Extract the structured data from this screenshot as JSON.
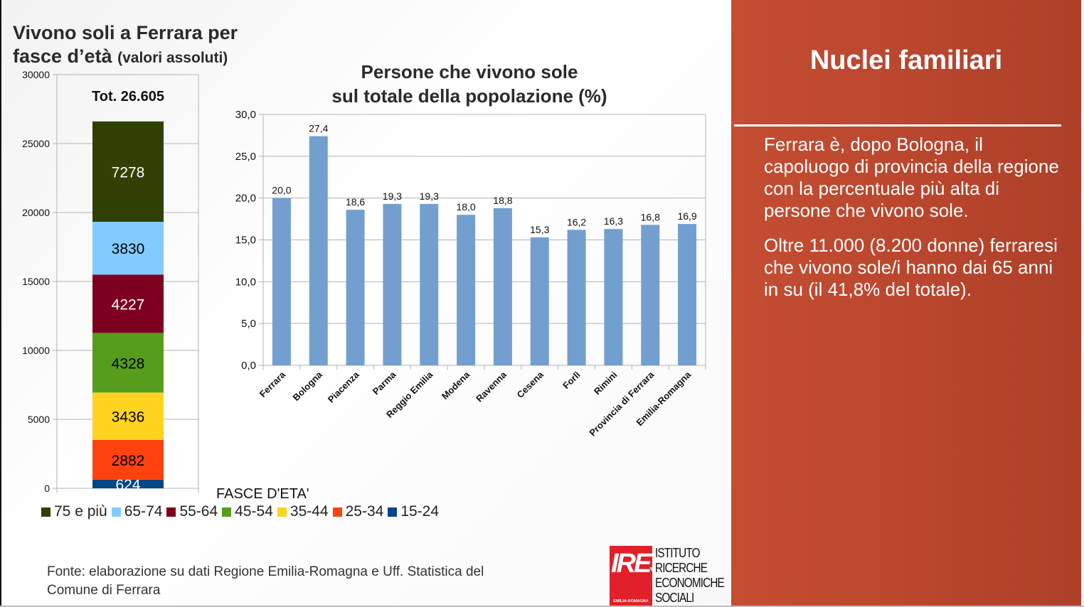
{
  "left_chart": {
    "title_line1": "Vivono soli a Ferrara per",
    "title_line2_main": "fasce d’età",
    "title_line2_small": "(valori assoluti)",
    "total_label": "Tot. 26.605",
    "legend_title": "FASCE D'ETA'"
  },
  "right_chart": {
    "title_line1": "Persone che vivono sole",
    "title_line2": "sul totale della popolazione (%)"
  },
  "source": {
    "line1": "Fonte: elaborazione su dati Regione Emilia-Romagna e Uff. Statistica del",
    "line2": "Comune di Ferrara"
  },
  "logo": {
    "mark": "IRES",
    "sub": "EMILIA-ROMAGNA",
    "lines": [
      "ISTITUTO",
      "RICERCHE",
      "ECONOMICHE",
      "SOCIALI"
    ]
  },
  "panel": {
    "title": "Nuclei familiari",
    "paragraphs": [
      "Ferrara è, dopo Bologna, il capoluogo di provincia della regione con la percentuale più alta di persone che vivono sole.",
      "Oltre 11.000 (8.200 donne) ferraresi che vivono sole/i hanno dai 65 anni in su (il 41,8% del totale)."
    ],
    "color": "#b8452d"
  },
  "chart_data": [
    {
      "type": "bar",
      "stacked": true,
      "title": "Vivono soli a Ferrara per fasce d’età (valori assoluti)",
      "annotation": "Tot. 26.605",
      "xlabel": "FASCE D'ETA'",
      "ylim": [
        0,
        30000
      ],
      "yticks": [
        "0",
        "5000",
        "10000",
        "15000",
        "20000",
        "25000",
        "30000"
      ],
      "legend_position": "bottom",
      "series": [
        {
          "name": "15-24",
          "value": 624,
          "color": "#004586",
          "label_color": "#ffffff"
        },
        {
          "name": "25-34",
          "value": 2882,
          "color": "#ff420e",
          "label_color": "#000000"
        },
        {
          "name": "35-44",
          "value": 3436,
          "color": "#ffd320",
          "label_color": "#000000"
        },
        {
          "name": "45-54",
          "value": 4328,
          "color": "#579d1c",
          "label_color": "#000000"
        },
        {
          "name": "55-64",
          "value": 4227,
          "color": "#7e0021",
          "label_color": "#ffffff"
        },
        {
          "name": "65-74",
          "value": 3830,
          "color": "#83caff",
          "label_color": "#000000"
        },
        {
          "name": "75 e più",
          "value": 7278,
          "color": "#314004",
          "label_color": "#ffffff"
        }
      ],
      "legend_order": [
        "75 e più",
        "65-74",
        "55-64",
        "45-54",
        "35-44",
        "25-34",
        "15-24"
      ]
    },
    {
      "type": "bar",
      "title": "Persone che vivono sole sul totale della popolazione (%)",
      "categories": [
        "Ferrara",
        "Bologna",
        "Piacenza",
        "Parma",
        "Reggio Emilia",
        "Modena",
        "Ravenna",
        "Cesena",
        "Forlì",
        "Rimini",
        "Provincia di Ferrara",
        "Emilia-Romagna"
      ],
      "values": [
        20.0,
        27.4,
        18.6,
        19.3,
        19.3,
        18.0,
        18.8,
        15.3,
        16.2,
        16.3,
        16.8,
        16.9
      ],
      "value_labels": [
        "20,0",
        "27,4",
        "18,6",
        "19,3",
        "19,3",
        "18,0",
        "18,8",
        "15,3",
        "16,2",
        "16,3",
        "16,8",
        "16,9"
      ],
      "ylim": [
        0,
        30
      ],
      "yticks": [
        "0,0",
        "5,0",
        "10,0",
        "15,0",
        "20,0",
        "25,0",
        "30,0"
      ],
      "color": "#729fcf",
      "grid": true
    }
  ]
}
